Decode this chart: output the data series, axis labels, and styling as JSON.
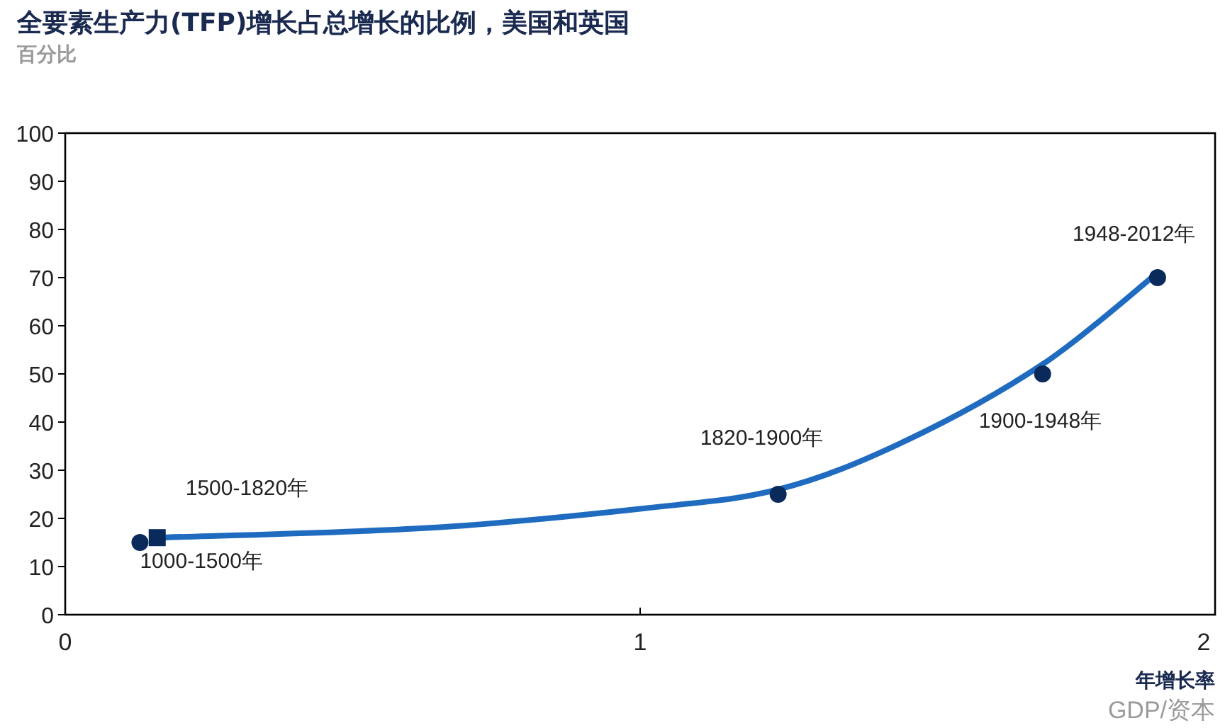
{
  "chart_data": {
    "type": "scatter",
    "title": "全要素生产力(TFP)增长占总增长的比例，美国和英国",
    "ylabel": "百分比",
    "xlabel": "年增长率",
    "xlim": [
      0,
      2
    ],
    "xticks": [
      0,
      1,
      2
    ],
    "ylim": [
      0,
      100
    ],
    "yticks": [
      0,
      10,
      20,
      30,
      40,
      50,
      60,
      70,
      80,
      90,
      100
    ],
    "grid": false,
    "series": [
      {
        "marker": "circle",
        "color": "#0b2a5c",
        "x": [
          0.13,
          1.24,
          1.7,
          1.9
        ],
        "values": [
          15,
          25,
          50,
          70
        ]
      },
      {
        "marker": "square",
        "color": "#0b2a5c",
        "x": [
          0.16
        ],
        "values": [
          16
        ]
      },
      {
        "type": "line",
        "color": "#1f6bbf",
        "x": [
          0.16,
          0.63,
          1.0,
          1.24,
          1.46,
          1.7,
          1.9
        ],
        "values": [
          16,
          18,
          22,
          26,
          36,
          52,
          71
        ]
      }
    ],
    "annotations": [
      {
        "text": "1000-1500年",
        "x": 0.13,
        "y": 15
      },
      {
        "text": "1500-1820年",
        "x": 0.16,
        "y": 16
      },
      {
        "text": "1820-1900年",
        "x": 1.24,
        "y": 25
      },
      {
        "text": "1900-1948年",
        "x": 1.7,
        "y": 50
      },
      {
        "text": "1948-2012年",
        "x": 1.9,
        "y": 70
      },
      "GDP/资本"
    ]
  }
}
